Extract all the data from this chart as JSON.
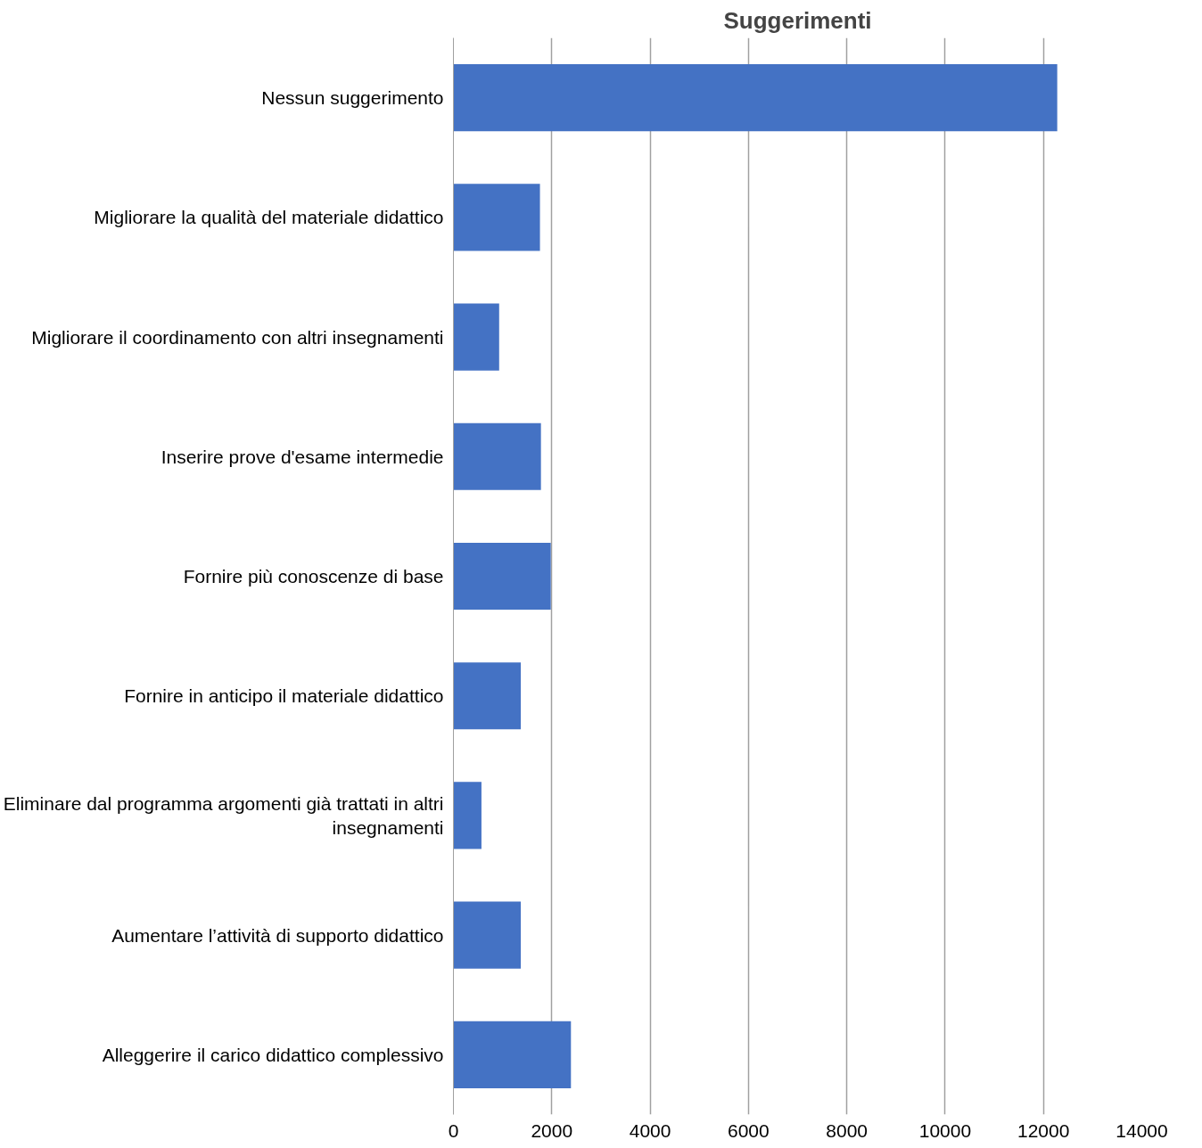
{
  "chart_data": {
    "type": "bar",
    "orientation": "horizontal",
    "title": "Suggerimenti",
    "categories": [
      "Nessun suggerimento",
      "Migliorare la qualità del materiale didattico",
      "Migliorare il coordinamento con altri insegnamenti",
      "Inserire prove d'esame intermedie",
      "Fornire più conoscenze di base",
      "Fornire in anticipo il materiale didattico",
      "Eliminare dal programma argomenti già trattati in altri insegnamenti",
      "Aumentare l’attività di supporto didattico",
      "Alleggerire il carico didattico complessivo"
    ],
    "values": [
      12280,
      1760,
      930,
      1780,
      1980,
      1370,
      570,
      1370,
      2390
    ],
    "color": "#4472c4",
    "xlim": [
      0,
      14000
    ],
    "xticks": [
      0,
      2000,
      4000,
      6000,
      8000,
      10000,
      12000,
      14000
    ],
    "grid": "x"
  }
}
